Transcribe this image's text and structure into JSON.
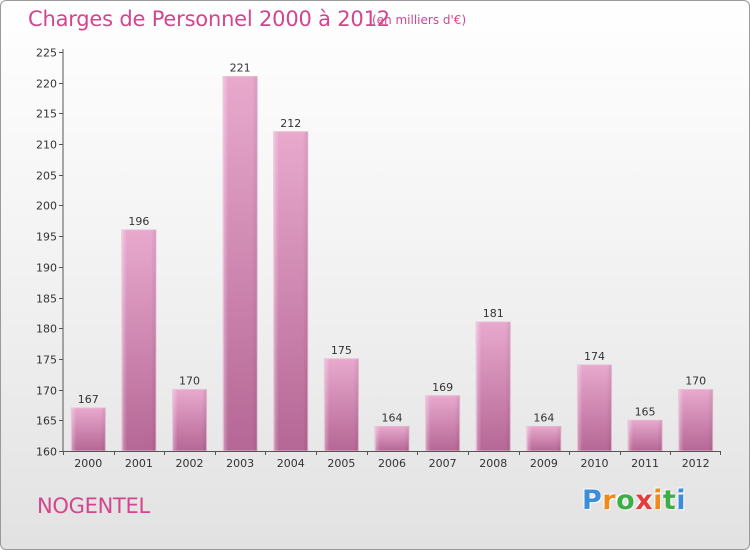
{
  "header": {
    "title": "Charges de Personnel 2000 à 2012",
    "unit": "(en milliers d'€)"
  },
  "footer": {
    "town": "NOGENTEL",
    "logo_letters": [
      "P",
      "r",
      "o",
      "x",
      "i",
      "t",
      "i"
    ]
  },
  "colors": {
    "accent": "#d3458e",
    "bar_light": "#e7a7cb",
    "bar_dark": "#b96d98",
    "logo": [
      "#3d8ed9",
      "#f08a1c",
      "#3fae49",
      "#e23d3d",
      "#f08a1c",
      "#3fae49",
      "#3d8ed9"
    ]
  },
  "chart_data": {
    "type": "bar",
    "title": "Charges de Personnel 2000 à 2012",
    "subtitle": "(en milliers d'€)",
    "categories": [
      "2000",
      "2001",
      "2002",
      "2003",
      "2004",
      "2005",
      "2006",
      "2007",
      "2008",
      "2009",
      "2010",
      "2011",
      "2012"
    ],
    "values": [
      167,
      196,
      170,
      221,
      212,
      175,
      164,
      169,
      181,
      164,
      174,
      165,
      170
    ],
    "ylim": [
      160,
      225
    ],
    "yticks": [
      160,
      165,
      170,
      175,
      180,
      185,
      190,
      195,
      200,
      205,
      210,
      215,
      220,
      225
    ],
    "grid": false,
    "legend": "none"
  }
}
